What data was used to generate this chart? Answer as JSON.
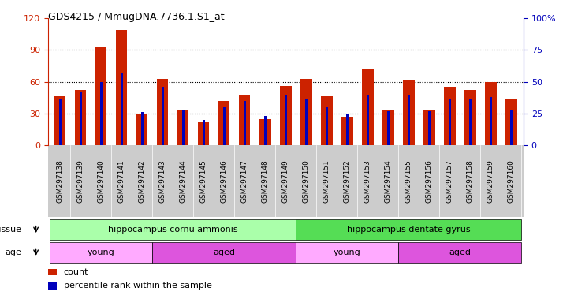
{
  "title": "GDS4215 / MmugDNA.7736.1.S1_at",
  "samples": [
    "GSM297138",
    "GSM297139",
    "GSM297140",
    "GSM297141",
    "GSM297142",
    "GSM297143",
    "GSM297144",
    "GSM297145",
    "GSM297146",
    "GSM297147",
    "GSM297148",
    "GSM297149",
    "GSM297150",
    "GSM297151",
    "GSM297152",
    "GSM297153",
    "GSM297154",
    "GSM297155",
    "GSM297156",
    "GSM297157",
    "GSM297158",
    "GSM297159",
    "GSM297160"
  ],
  "counts": [
    46,
    52,
    93,
    109,
    30,
    63,
    33,
    22,
    42,
    48,
    25,
    56,
    63,
    46,
    27,
    72,
    33,
    62,
    33,
    55,
    52,
    60,
    44
  ],
  "percentiles": [
    36,
    42,
    50,
    57,
    26,
    46,
    28,
    20,
    30,
    35,
    23,
    40,
    37,
    30,
    25,
    40,
    27,
    39,
    27,
    37,
    37,
    38,
    28
  ],
  "red_color": "#CC2200",
  "blue_color": "#0000BB",
  "ylim_left": [
    0,
    120
  ],
  "ylim_right": [
    0,
    100
  ],
  "yticks_left": [
    0,
    30,
    60,
    90,
    120
  ],
  "yticks_right": [
    0,
    25,
    50,
    75,
    100
  ],
  "tissue_groups": [
    {
      "label": "hippocampus cornu ammonis",
      "start": 0,
      "end": 11,
      "color": "#AAFFAA"
    },
    {
      "label": "hippocampus dentate gyrus",
      "start": 12,
      "end": 22,
      "color": "#55DD55"
    }
  ],
  "age_groups": [
    {
      "label": "young",
      "start": 0,
      "end": 4,
      "color": "#FFAAFF"
    },
    {
      "label": "aged",
      "start": 5,
      "end": 11,
      "color": "#DD55DD"
    },
    {
      "label": "young",
      "start": 12,
      "end": 16,
      "color": "#FFAAFF"
    },
    {
      "label": "aged",
      "start": 17,
      "end": 22,
      "color": "#DD55DD"
    }
  ],
  "bar_width": 0.55,
  "blue_bar_width": 0.12,
  "grid_color": "#000000",
  "bg_color": "#FFFFFF",
  "xtick_bg": "#CCCCCC",
  "legend_items": [
    {
      "label": "count",
      "color": "#CC2200"
    },
    {
      "label": "percentile rank within the sample",
      "color": "#0000BB"
    }
  ]
}
